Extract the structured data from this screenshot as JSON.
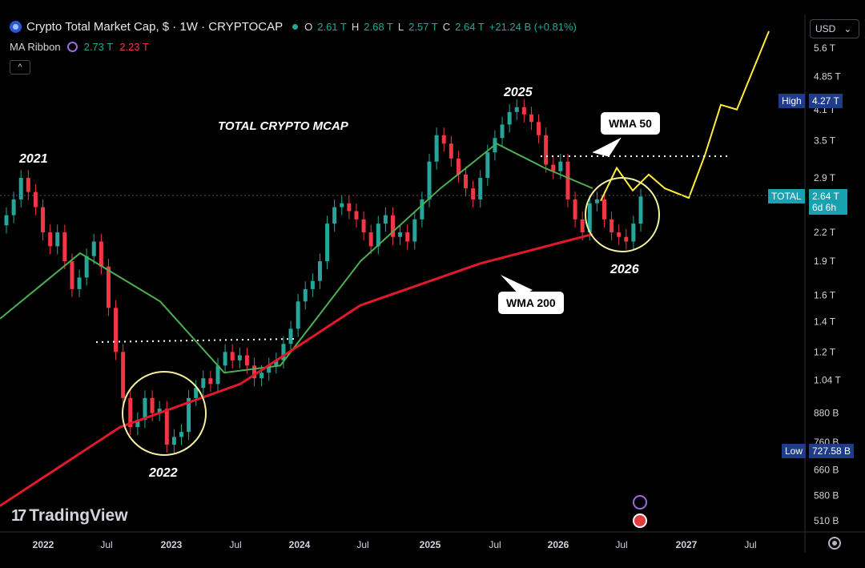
{
  "header": {
    "title": "Crypto Total Market Cap, $ · 1W · CRYPTOCAP",
    "open_label": "O",
    "open": "2.61 T",
    "high_label": "H",
    "high": "2.68 T",
    "low_label": "L",
    "low": "2.57 T",
    "close_label": "C",
    "close": "2.64 T",
    "change": "+21.24 B (+0.81%)"
  },
  "indicator": {
    "name": "MA Ribbon",
    "v1": "2.73 T",
    "v2": "2.23 T"
  },
  "currency": "USD",
  "currency_caret": "⌄",
  "collapse_glyph": "^",
  "logo": "TradingView",
  "colors": {
    "bg": "#000000",
    "up": "#26a69a",
    "down": "#f23645",
    "wma50": "#4caf50",
    "wma200": "#e0192b",
    "projection": "#ffeb3b",
    "label_blue": "#1e3c8a",
    "label_teal": "#1aa1b0"
  },
  "chart_data": {
    "type": "candlestick",
    "title": "TOTAL CRYPTO MCAP",
    "scale": "log",
    "y_ticks": [
      "5.6 T",
      "4.85 T",
      "4.1 T",
      "3.5 T",
      "2.9 T",
      "2.2 T",
      "1.9 T",
      "1.6 T",
      "1.4 T",
      "1.2 T",
      "1.04 T",
      "880 B",
      "760 B",
      "660 B",
      "580 B",
      "510 B"
    ],
    "x_ticks": [
      "2022",
      "Jul",
      "2023",
      "Jul",
      "2024",
      "Jul",
      "2025",
      "Jul",
      "2026",
      "Jul",
      "2027",
      "Jul"
    ],
    "price_markers": [
      {
        "label": "High",
        "value": "4.27 T"
      },
      {
        "label": "TOTAL",
        "value": "2.64 T",
        "extra": "6d 6h"
      },
      {
        "label": "Low",
        "value": "727.58 B"
      }
    ],
    "annotations": [
      "2021",
      "2022",
      "2025",
      "2026"
    ],
    "callouts": [
      "WMA 50",
      "WMA 200"
    ],
    "series": [
      {
        "name": "WMA 50",
        "points": [
          [
            0.0,
            1.42
          ],
          [
            0.1,
            1.98
          ],
          [
            0.2,
            1.55
          ],
          [
            0.28,
            1.08
          ],
          [
            0.35,
            1.12
          ],
          [
            0.45,
            1.9
          ],
          [
            0.55,
            2.75
          ],
          [
            0.62,
            3.45
          ],
          [
            0.68,
            3.05
          ],
          [
            0.74,
            2.75
          ]
        ]
      },
      {
        "name": "WMA 200",
        "points": [
          [
            0.0,
            0.55
          ],
          [
            0.15,
            0.82
          ],
          [
            0.3,
            1.02
          ],
          [
            0.45,
            1.52
          ],
          [
            0.6,
            1.88
          ],
          [
            0.74,
            2.18
          ]
        ]
      },
      {
        "name": "Projection",
        "points": [
          [
            0.75,
            2.58
          ],
          [
            0.77,
            3.05
          ],
          [
            0.79,
            2.72
          ],
          [
            0.81,
            2.95
          ],
          [
            0.83,
            2.75
          ],
          [
            0.86,
            2.62
          ],
          [
            0.88,
            3.25
          ],
          [
            0.9,
            4.2
          ],
          [
            0.92,
            4.1
          ],
          [
            0.94,
            5.0
          ],
          [
            0.96,
            6.1
          ]
        ]
      }
    ],
    "candles_close": [
      2.4,
      2.6,
      2.9,
      2.7,
      2.5,
      2.2,
      2.05,
      2.2,
      1.9,
      1.65,
      1.75,
      1.95,
      2.1,
      1.85,
      1.5,
      1.2,
      0.95,
      0.82,
      0.85,
      0.95,
      0.88,
      0.9,
      0.75,
      0.78,
      0.8,
      0.95,
      1.0,
      1.05,
      1.02,
      1.12,
      1.2,
      1.15,
      1.18,
      1.12,
      1.05,
      1.08,
      1.12,
      1.15,
      1.25,
      1.35,
      1.55,
      1.65,
      1.72,
      1.9,
      2.3,
      2.5,
      2.55,
      2.45,
      2.35,
      2.2,
      2.05,
      2.3,
      2.4,
      2.15,
      2.2,
      2.1,
      2.35,
      2.6,
      3.15,
      3.6,
      3.45,
      3.2,
      2.95,
      2.75,
      2.6,
      2.9,
      3.3,
      3.55,
      3.8,
      4.05,
      4.15,
      4.0,
      3.85,
      3.6,
      3.1,
      3.0,
      3.15,
      2.6,
      2.35,
      2.2,
      2.55,
      2.6,
      2.35,
      2.2,
      2.15,
      2.1,
      2.3,
      2.64
    ]
  },
  "bubbles": {
    "wma50": "WMA 50",
    "wma200": "WMA 200"
  }
}
